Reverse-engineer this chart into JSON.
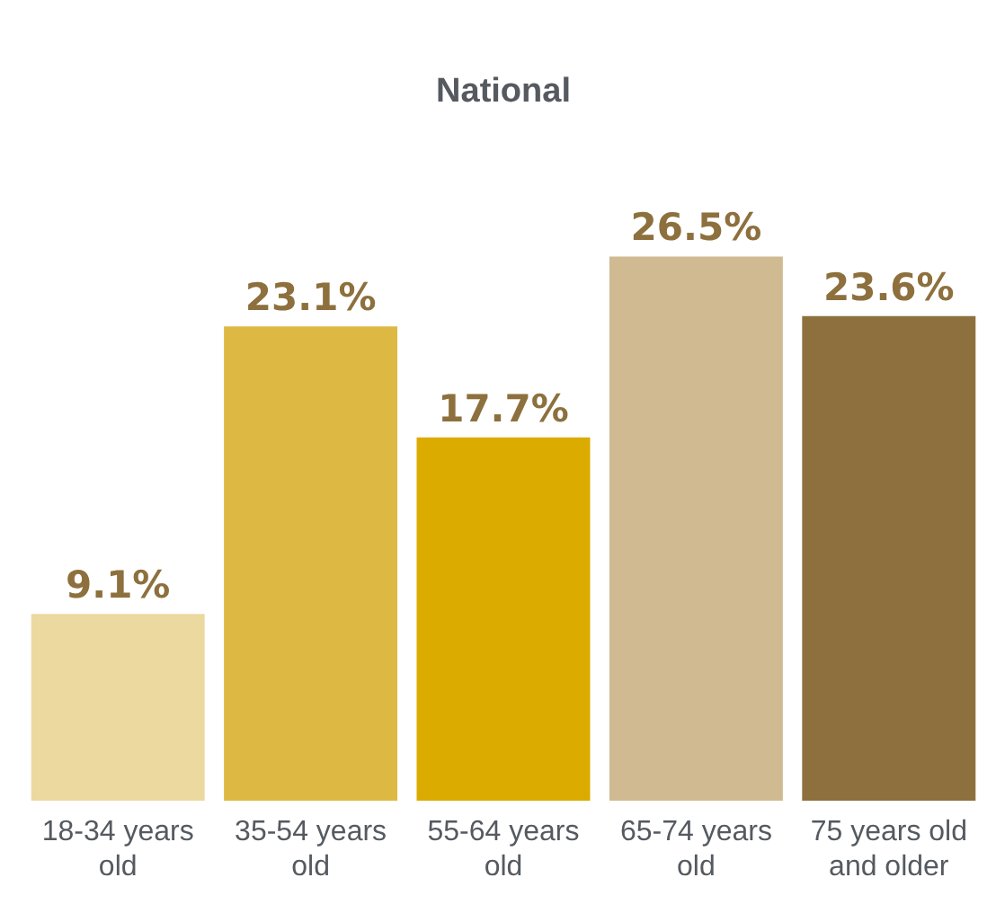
{
  "chart_data": {
    "type": "bar",
    "title": "National",
    "categories": [
      "18-34 years old",
      "35-54 years old",
      "55-64 years old",
      "65-74 years old",
      "75 years old and older"
    ],
    "values": [
      9.1,
      23.1,
      17.7,
      26.5,
      23.6
    ],
    "colors": [
      "#ecd99f",
      "#ddb944",
      "#dbab00",
      "#d0ba91",
      "#8d703d"
    ],
    "value_labels": [
      "9.1%",
      "23.1%",
      "17.7%",
      "26.5%",
      "23.6%"
    ],
    "grid": false,
    "legend": false
  }
}
